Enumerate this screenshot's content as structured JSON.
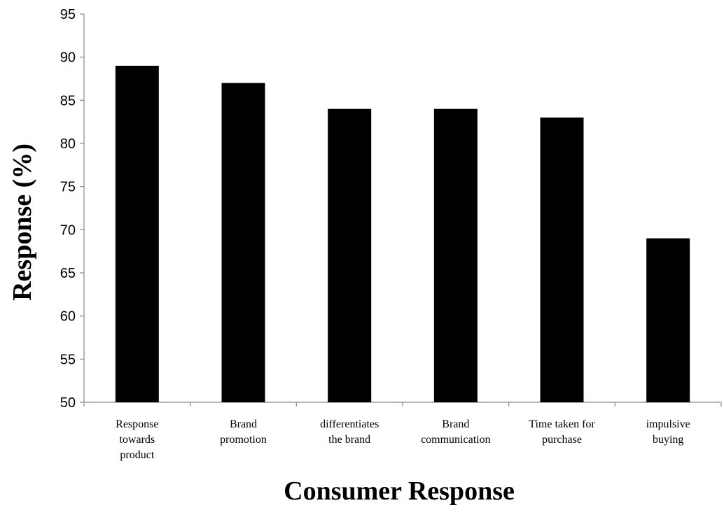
{
  "chart_data": {
    "type": "bar",
    "title": "",
    "xlabel": "Consumer Response",
    "ylabel": "Response (%)",
    "ylim": [
      50,
      95
    ],
    "yticks": [
      50,
      55,
      60,
      65,
      70,
      75,
      80,
      85,
      90,
      95
    ],
    "grid": false,
    "legend": "none",
    "bar_color": "#000000",
    "categories": [
      [
        "Response",
        "towards",
        "product"
      ],
      [
        "Brand",
        "promotion"
      ],
      [
        "differentiates",
        "the brand"
      ],
      [
        "Brand",
        "communication"
      ],
      [
        "Time taken for",
        "purchase"
      ],
      [
        "impulsive",
        "buying"
      ]
    ],
    "values": [
      89,
      87,
      84,
      84,
      83,
      69
    ]
  }
}
